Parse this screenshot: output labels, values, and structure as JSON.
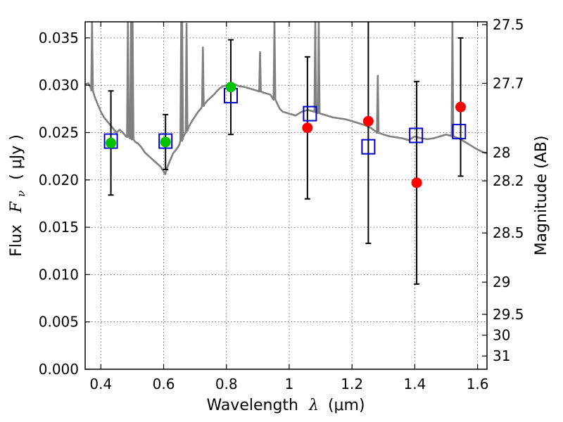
{
  "chart_data": {
    "type": "scatter",
    "title": "",
    "xlabel": {
      "text": "Wavelength",
      "symbol": "λ",
      "unit": "(μm)"
    },
    "ylabel": {
      "text": "Flux",
      "symbol": "F",
      "subscript": "ν",
      "unit": "( μJy )"
    },
    "y2label": "Magnitude (AB)",
    "xlim": [
      0.35,
      1.63
    ],
    "ylim": [
      0.0,
      0.0367
    ],
    "grid": true,
    "x_ticks": [
      {
        "value": 0.4,
        "label": "0.4"
      },
      {
        "value": 0.6,
        "label": "0.6"
      },
      {
        "value": 0.8,
        "label": "0.8"
      },
      {
        "value": 1.0,
        "label": "1"
      },
      {
        "value": 1.2,
        "label": "1.2"
      },
      {
        "value": 1.4,
        "label": "1.4"
      },
      {
        "value": 1.6,
        "label": "1.6"
      }
    ],
    "y_ticks": [
      {
        "value": 0.0,
        "label": "0.000"
      },
      {
        "value": 0.005,
        "label": "0.005"
      },
      {
        "value": 0.01,
        "label": "0.010"
      },
      {
        "value": 0.015,
        "label": "0.015"
      },
      {
        "value": 0.02,
        "label": "0.020"
      },
      {
        "value": 0.025,
        "label": "0.025"
      },
      {
        "value": 0.03,
        "label": "0.030"
      },
      {
        "value": 0.035,
        "label": "0.035"
      }
    ],
    "y2_ticks": [
      {
        "flux": 0.0364,
        "label": "27.5"
      },
      {
        "flux": 0.0302,
        "label": "27.7"
      },
      {
        "flux": 0.0229,
        "label": "28"
      },
      {
        "flux": 0.0199,
        "label": "28.2"
      },
      {
        "flux": 0.0144,
        "label": "28.5"
      },
      {
        "flux": 0.0092,
        "label": "29"
      },
      {
        "flux": 0.0058,
        "label": "29.5"
      },
      {
        "flux": 0.0036,
        "label": "30"
      },
      {
        "flux": 0.0014,
        "label": "31"
      }
    ],
    "colors": {
      "model": "#808080",
      "green": "#00c000",
      "red": "#ff0000",
      "box": "#0000cc",
      "errorbar": "#000000"
    },
    "model_spectrum": [
      [
        0.35,
        0.0301
      ],
      [
        0.36,
        0.0302
      ],
      [
        0.37,
        0.0296
      ],
      [
        0.38,
        0.0288
      ],
      [
        0.39,
        0.028
      ],
      [
        0.4,
        0.0272
      ],
      [
        0.41,
        0.0266
      ],
      [
        0.42,
        0.0262
      ],
      [
        0.43,
        0.0258
      ],
      [
        0.44,
        0.0254
      ],
      [
        0.45,
        0.025
      ],
      [
        0.46,
        0.0253
      ],
      [
        0.47,
        0.025
      ],
      [
        0.48,
        0.0246
      ],
      [
        0.49,
        0.0245
      ],
      [
        0.5,
        0.0243
      ],
      [
        0.51,
        0.024
      ],
      [
        0.52,
        0.0238
      ],
      [
        0.53,
        0.0234
      ],
      [
        0.54,
        0.0229
      ],
      [
        0.55,
        0.0226
      ],
      [
        0.56,
        0.0223
      ],
      [
        0.57,
        0.022
      ],
      [
        0.58,
        0.0217
      ],
      [
        0.59,
        0.0214
      ],
      [
        0.6,
        0.0209
      ],
      [
        0.605,
        0.0206
      ],
      [
        0.61,
        0.0212
      ],
      [
        0.62,
        0.022
      ],
      [
        0.63,
        0.0228
      ],
      [
        0.64,
        0.0232
      ],
      [
        0.65,
        0.0237
      ],
      [
        0.66,
        0.0244
      ],
      [
        0.67,
        0.025
      ],
      [
        0.68,
        0.0256
      ],
      [
        0.69,
        0.0262
      ],
      [
        0.7,
        0.0267
      ],
      [
        0.71,
        0.0272
      ],
      [
        0.72,
        0.0276
      ],
      [
        0.73,
        0.028
      ],
      [
        0.74,
        0.0284
      ],
      [
        0.75,
        0.0287
      ],
      [
        0.76,
        0.029
      ],
      [
        0.77,
        0.0294
      ],
      [
        0.78,
        0.0297
      ],
      [
        0.79,
        0.0299
      ],
      [
        0.8,
        0.03
      ],
      [
        0.82,
        0.0302
      ],
      [
        0.84,
        0.0299
      ],
      [
        0.86,
        0.0298
      ],
      [
        0.88,
        0.0296
      ],
      [
        0.9,
        0.0294
      ],
      [
        0.92,
        0.0292
      ],
      [
        0.94,
        0.029
      ],
      [
        0.96,
        0.0282
      ],
      [
        0.97,
        0.0275
      ],
      [
        0.98,
        0.0272
      ],
      [
        1.0,
        0.027
      ],
      [
        1.02,
        0.0268
      ],
      [
        1.04,
        0.0272
      ],
      [
        1.06,
        0.0274
      ],
      [
        1.08,
        0.0272
      ],
      [
        1.1,
        0.027
      ],
      [
        1.12,
        0.0268
      ],
      [
        1.14,
        0.0266
      ],
      [
        1.16,
        0.0265
      ],
      [
        1.18,
        0.0264
      ],
      [
        1.2,
        0.0262
      ],
      [
        1.22,
        0.026
      ],
      [
        1.24,
        0.0258
      ],
      [
        1.26,
        0.0255
      ],
      [
        1.28,
        0.025
      ],
      [
        1.3,
        0.0248
      ],
      [
        1.32,
        0.0246
      ],
      [
        1.34,
        0.0245
      ],
      [
        1.36,
        0.0244
      ],
      [
        1.38,
        0.0242
      ],
      [
        1.4,
        0.0246
      ],
      [
        1.42,
        0.0244
      ],
      [
        1.44,
        0.0243
      ],
      [
        1.46,
        0.0244
      ],
      [
        1.48,
        0.0246
      ],
      [
        1.5,
        0.0248
      ],
      [
        1.52,
        0.0246
      ],
      [
        1.54,
        0.0244
      ],
      [
        1.56,
        0.024
      ],
      [
        1.58,
        0.0236
      ],
      [
        1.6,
        0.0232
      ],
      [
        1.62,
        0.0229
      ],
      [
        1.63,
        0.0228
      ]
    ],
    "emission_lines": [
      {
        "x": 0.372,
        "peak": 0.0367
      },
      {
        "x": 0.486,
        "peak": 0.0367
      },
      {
        "x": 0.496,
        "peak": 0.0367
      },
      {
        "x": 0.501,
        "peak": 0.0367
      },
      {
        "x": 0.656,
        "peak": 0.0367
      },
      {
        "x": 0.659,
        "peak": 0.0367
      },
      {
        "x": 0.673,
        "peak": 0.0365
      },
      {
        "x": 0.725,
        "peak": 0.034
      },
      {
        "x": 0.907,
        "peak": 0.0335
      },
      {
        "x": 0.953,
        "peak": 0.0367
      },
      {
        "x": 1.083,
        "peak": 0.0367
      },
      {
        "x": 1.094,
        "peak": 0.0367
      },
      {
        "x": 1.282,
        "peak": 0.031
      },
      {
        "x": 1.52,
        "peak": 0.0367
      }
    ],
    "observed_green": [
      {
        "x": 0.432,
        "y": 0.0239,
        "err": 0.0055
      },
      {
        "x": 0.606,
        "y": 0.024,
        "err": 0.0029
      },
      {
        "x": 0.814,
        "y": 0.0298,
        "err": 0.005
      }
    ],
    "observed_red": [
      {
        "x": 1.058,
        "y": 0.0255,
        "err": 0.0075
      },
      {
        "x": 1.252,
        "y": 0.0262,
        "err": 0.0129
      },
      {
        "x": 1.406,
        "y": 0.0197,
        "err": 0.0107
      },
      {
        "x": 1.546,
        "y": 0.0277,
        "err": 0.0073
      }
    ],
    "model_boxes": [
      {
        "x": 0.432,
        "y": 0.0241
      },
      {
        "x": 0.606,
        "y": 0.0241
      },
      {
        "x": 0.814,
        "y": 0.0289
      },
      {
        "x": 1.066,
        "y": 0.027
      },
      {
        "x": 1.252,
        "y": 0.0235
      },
      {
        "x": 1.404,
        "y": 0.0247
      },
      {
        "x": 1.541,
        "y": 0.0251
      }
    ]
  }
}
